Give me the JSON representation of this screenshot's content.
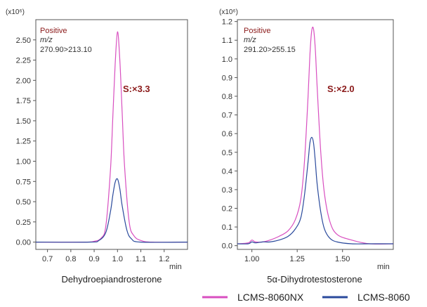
{
  "chart_data": [
    {
      "type": "line",
      "multiplier": "(x10⁶)",
      "title": "Dehydroepiandrosterone",
      "x_unit": "min",
      "xlim": [
        0.65,
        1.3
      ],
      "ylim": [
        -0.09,
        2.75
      ],
      "x_ticks": [
        0.7,
        0.8,
        0.9,
        1.0,
        1.1,
        1.2
      ],
      "x_tick_labels": [
        "0.7",
        "0.8",
        "0.9",
        "1.0",
        "1.1",
        "1.2"
      ],
      "y_ticks": [
        0,
        0.25,
        0.5,
        0.75,
        1.0,
        1.25,
        1.5,
        1.75,
        2.0,
        2.25,
        2.5
      ],
      "y_tick_labels": [
        "0.00",
        "0.25",
        "0.50",
        "0.75",
        "1.00",
        "1.25",
        "1.50",
        "1.75",
        "2.00",
        "2.25",
        "2.50"
      ],
      "annotation": {
        "line1": "Positive",
        "line2": "m/z",
        "line3": "270.90>213.10"
      },
      "scale_label": "S:×3.3",
      "series": [
        {
          "name": "LCMS-8060NX",
          "color": "#d84fc0",
          "x": [
            0.65,
            0.85,
            0.9,
            0.93,
            0.95,
            0.97,
            0.98,
            0.99,
            1.0,
            1.01,
            1.02,
            1.03,
            1.05,
            1.07,
            1.1,
            1.15,
            1.3
          ],
          "y": [
            0.0,
            0.0,
            0.01,
            0.05,
            0.2,
            0.9,
            1.55,
            2.2,
            2.6,
            2.25,
            1.6,
            0.95,
            0.25,
            0.08,
            0.02,
            0.0,
            0.0
          ]
        },
        {
          "name": "LCMS-8060",
          "color": "#2a4a9c",
          "x": [
            0.65,
            0.88,
            0.92,
            0.95,
            0.97,
            0.98,
            0.99,
            1.0,
            1.01,
            1.02,
            1.04,
            1.06,
            1.1,
            1.3
          ],
          "y": [
            0.0,
            0.0,
            0.02,
            0.12,
            0.38,
            0.58,
            0.74,
            0.78,
            0.66,
            0.45,
            0.15,
            0.04,
            0.0,
            0.0
          ]
        }
      ]
    },
    {
      "type": "line",
      "multiplier": "(x10⁶)",
      "title": "5α-Dihydrotestosterone",
      "x_unit": "min",
      "xlim": [
        0.92,
        1.78
      ],
      "ylim": [
        -0.02,
        1.21
      ],
      "x_ticks": [
        1.0,
        1.25,
        1.5
      ],
      "x_tick_labels": [
        "1.00",
        "1.25",
        "1.50"
      ],
      "y_ticks": [
        0,
        0.1,
        0.2,
        0.3,
        0.4,
        0.5,
        0.6,
        0.7,
        0.8,
        0.9,
        1.0,
        1.1,
        1.2
      ],
      "y_tick_labels": [
        "0.0",
        "0.1",
        "0.2",
        "0.3",
        "0.4",
        "0.5",
        "0.6",
        "0.7",
        "0.8",
        "0.9",
        "1.0",
        "1.1",
        "1.2"
      ],
      "annotation": {
        "line1": "Positive",
        "line2": "m/z",
        "line3": "291.20>255.15"
      },
      "scale_label": "S:×2.0",
      "series": [
        {
          "name": "LCMS-8060NX",
          "color": "#d84fc0",
          "x": [
            0.92,
            0.98,
            1.0,
            1.02,
            1.06,
            1.1,
            1.15,
            1.2,
            1.24,
            1.27,
            1.29,
            1.31,
            1.32,
            1.33,
            1.34,
            1.35,
            1.36,
            1.38,
            1.4,
            1.43,
            1.47,
            1.55,
            1.65,
            1.78
          ],
          "y": [
            0.01,
            0.015,
            0.03,
            0.02,
            0.02,
            0.03,
            0.05,
            0.08,
            0.14,
            0.25,
            0.45,
            0.8,
            1.02,
            1.15,
            1.16,
            1.05,
            0.85,
            0.5,
            0.28,
            0.13,
            0.06,
            0.03,
            0.01,
            0.01
          ]
        },
        {
          "name": "LCMS-8060",
          "color": "#2a4a9c",
          "x": [
            0.92,
            0.98,
            1.0,
            1.02,
            1.06,
            1.1,
            1.15,
            1.2,
            1.24,
            1.27,
            1.29,
            1.31,
            1.32,
            1.33,
            1.34,
            1.35,
            1.36,
            1.38,
            1.4,
            1.43,
            1.47,
            1.55,
            1.65,
            1.78
          ],
          "y": [
            0.01,
            0.01,
            0.02,
            0.015,
            0.02,
            0.02,
            0.03,
            0.05,
            0.09,
            0.15,
            0.27,
            0.45,
            0.55,
            0.58,
            0.55,
            0.45,
            0.33,
            0.18,
            0.09,
            0.04,
            0.02,
            0.01,
            0.01,
            0.01
          ]
        }
      ]
    }
  ],
  "legend": [
    {
      "label": "LCMS-8060NX",
      "color": "#d84fc0"
    },
    {
      "label": "LCMS-8060",
      "color": "#2a4a9c"
    }
  ],
  "accent_color": "#8b1a1a"
}
